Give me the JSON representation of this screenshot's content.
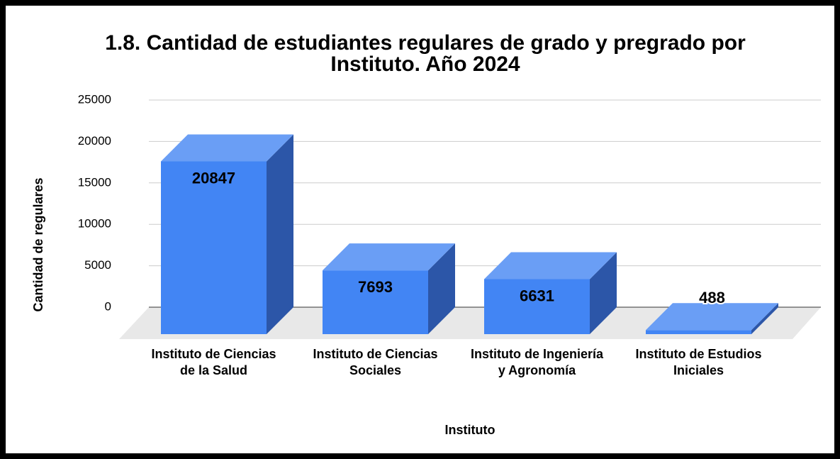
{
  "chart_data": {
    "type": "bar3d",
    "title": "1.8. Cantidad de estudiantes regulares de grado y pregrado  por Instituto. Año 2024",
    "x_label": "Instituto",
    "y_label": "Cantidad de regulares",
    "categories": [
      "Instituto de Ciencias de la Salud",
      "Instituto de Ciencias Sociales",
      "Instituto de Ingeniería y Agronomía",
      "Instituto de Estudios Iniciales"
    ],
    "values": [
      20847,
      7693,
      6631,
      488
    ],
    "color": "#4285f4",
    "ylim": [
      0,
      25000
    ],
    "yticks": [
      0,
      5000,
      10000,
      15000,
      20000,
      25000
    ],
    "grid": true
  }
}
